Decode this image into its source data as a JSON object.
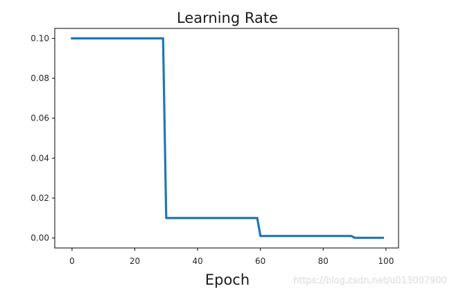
{
  "chart_data": {
    "type": "line",
    "title": "Learning Rate",
    "xlabel": "Epoch",
    "ylabel": "",
    "xlim": [
      -5.5,
      104
    ],
    "ylim": [
      -0.005,
      0.105
    ],
    "xticks": [
      0,
      20,
      40,
      60,
      80,
      100
    ],
    "yticks": [
      0.0,
      0.02,
      0.04,
      0.06,
      0.08,
      0.1
    ],
    "xtick_labels": [
      "0",
      "20",
      "40",
      "60",
      "80",
      "100"
    ],
    "ytick_labels": [
      "0.00",
      "0.02",
      "0.04",
      "0.06",
      "0.08",
      "0.10"
    ],
    "grid": false,
    "legend": "none",
    "series": [
      {
        "color": "#1f77b4",
        "x": [
          0,
          29,
          30,
          59,
          60,
          89,
          90,
          99
        ],
        "y": [
          0.1,
          0.1,
          0.01,
          0.01,
          0.001,
          0.001,
          0.0001,
          0.0001
        ]
      }
    ]
  },
  "watermark": "https://blog.csdn.net/u013007900"
}
